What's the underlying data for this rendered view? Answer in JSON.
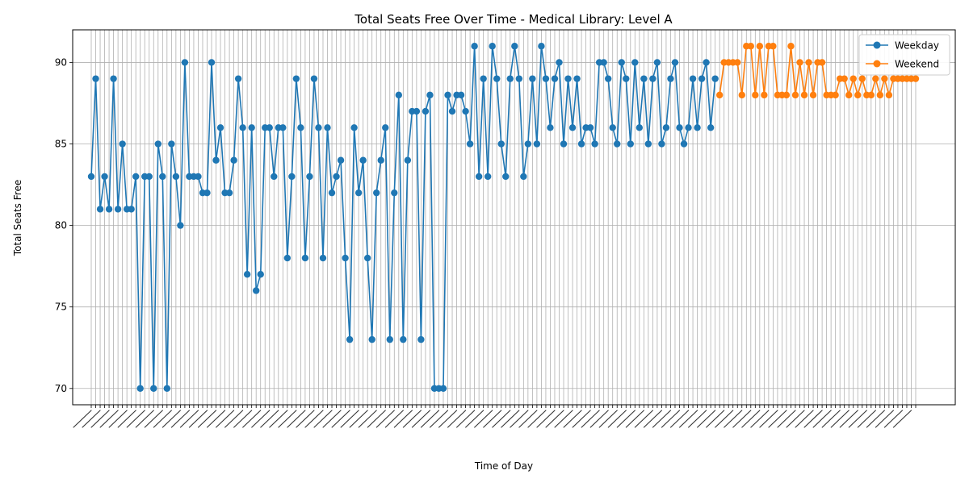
{
  "chart_data": {
    "type": "line",
    "title": "Total Seats Free Over Time - Medical Library: Level A",
    "xlabel": "Time of Day",
    "ylabel": "Total Seats Free",
    "ylim": [
      69,
      92
    ],
    "yticks": [
      70,
      75,
      80,
      85,
      90
    ],
    "grid": true,
    "legend_position": "top-right",
    "x_tick_labels_note": "dense, overlapping, unreadable time labels rotated 45 degrees",
    "series": [
      {
        "name": "Weekday",
        "color": "#1f77b4",
        "values": [
          83,
          89,
          81,
          83,
          81,
          89,
          81,
          85,
          81,
          81,
          83,
          70,
          83,
          83,
          70,
          85,
          83,
          70,
          85,
          83,
          80,
          90,
          83,
          83,
          83,
          82,
          82,
          90,
          84,
          86,
          82,
          82,
          84,
          89,
          86,
          77,
          86,
          76,
          77,
          86,
          86,
          83,
          86,
          86,
          78,
          83,
          89,
          86,
          78,
          83,
          89,
          86,
          78,
          86,
          82,
          83,
          84,
          78,
          73,
          86,
          82,
          84,
          78,
          73,
          82,
          84,
          86,
          73,
          82,
          88,
          73,
          84,
          87,
          87,
          73,
          87,
          88,
          70,
          70,
          70,
          88,
          87,
          88,
          88,
          87,
          85,
          91,
          83,
          89,
          83,
          91,
          89,
          85,
          83,
          89,
          91,
          89,
          83,
          85,
          89,
          85,
          91,
          89,
          86,
          89,
          90,
          85,
          89,
          86,
          89,
          85,
          86,
          86,
          85,
          90,
          90,
          89,
          86,
          85,
          90,
          89,
          85,
          90,
          86,
          89,
          85,
          89,
          90,
          85,
          86,
          89,
          90,
          86,
          85,
          86,
          89,
          86,
          89,
          90,
          86,
          89
        ]
      },
      {
        "name": "Weekend",
        "color": "#ff7f0e",
        "values": [
          88,
          90,
          90,
          90,
          90,
          88,
          91,
          91,
          88,
          91,
          88,
          91,
          91,
          88,
          88,
          88,
          91,
          88,
          90,
          88,
          90,
          88,
          90,
          90,
          88,
          88,
          88,
          89,
          89,
          88,
          89,
          88,
          89,
          88,
          88,
          89,
          88,
          89,
          88,
          89,
          89,
          89,
          89,
          89,
          89
        ]
      }
    ]
  }
}
